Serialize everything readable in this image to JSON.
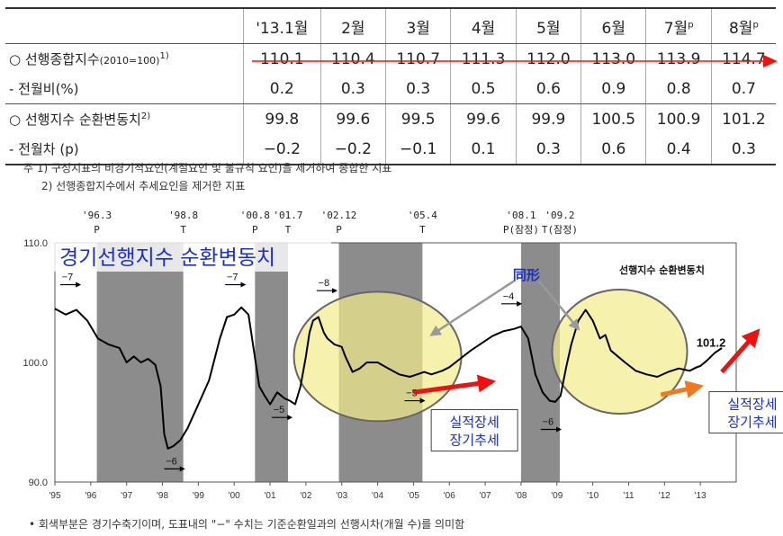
{
  "table": {
    "columns": [
      "'13.1월",
      "2월",
      "3월",
      "4월",
      "5월",
      "6월",
      "7월",
      "8월"
    ],
    "column_superscripts": [
      "",
      "",
      "",
      "",
      "",
      "",
      "p",
      "p"
    ],
    "rows": [
      {
        "label": "○  선행종합지수",
        "label_small": "(2010=100)",
        "label_sup": "1)",
        "values": [
          "110.1",
          "110.4",
          "110.7",
          "111.3",
          "112.0",
          "113.0",
          "113.9",
          "114.7"
        ]
      },
      {
        "label": "  - 전월비(%)",
        "label_small": "",
        "label_sup": "",
        "values": [
          "0.2",
          "0.3",
          "0.3",
          "0.5",
          "0.6",
          "0.9",
          "0.8",
          "0.7"
        ]
      },
      {
        "label": "○  선행지수 순환변동치",
        "label_small": "",
        "label_sup": "2)",
        "values": [
          "99.8",
          "99.6",
          "99.5",
          "99.6",
          "99.9",
          "100.5",
          "100.9",
          "101.2"
        ]
      },
      {
        "label": "  - 전월차 (p)",
        "label_small": "",
        "label_sup": "",
        "values": [
          "−0.2",
          "−0.2",
          "−0.1",
          "0.1",
          "0.3",
          "0.6",
          "0.4",
          "0.3"
        ]
      }
    ]
  },
  "notes": {
    "note1": "주 1) 구성지표의 비경기적요인(계절요인 및 불규칙 요인)을 제거하여 종합한 지표",
    "note2": "2) 선행종합지수에서 추세요인을 제거한 지표"
  },
  "bottom_note": "• 회색부분은 경기수축기이며, 도표내의 \"−\" 수치는 기준순환일과의 선행시차(개월 수)를 의미함",
  "colors": {
    "recession": "#8c8c8c",
    "line": "#000000",
    "ellipse_fill": "#f2ec8c",
    "ellipse_stroke": "#666666",
    "annotation_blue": "#1a30c8",
    "red_arrow": "#ee1111",
    "orange_arrow": "#f07820"
  },
  "chart_data": {
    "type": "line",
    "title_overlay": "경기선행지수 순환변동치",
    "legend": "선행지수 순환변동치",
    "ylim": [
      90.0,
      110.0
    ],
    "yticks": [
      "90.0",
      "100.0",
      "110.0"
    ],
    "xticks": [
      "'95",
      "'96",
      "'97",
      "'98",
      "'99",
      "'00",
      "'01",
      "'02",
      "'03",
      "'04",
      "'05",
      "'06",
      "'07",
      "'08",
      "'09",
      "'10",
      "'11",
      "'12",
      "'13"
    ],
    "x_range": [
      1995.0,
      2014.0
    ],
    "turning_points": [
      {
        "label": "'96.3",
        "type": "P",
        "x": 1996.17
      },
      {
        "label": "'98.8",
        "type": "T",
        "x": 1998.58
      },
      {
        "label": "'00.8",
        "type": "P",
        "x": 2000.58
      },
      {
        "label": "'01.7",
        "type": "T",
        "x": 2001.5
      },
      {
        "label": "'02.12",
        "type": "P",
        "x": 2002.92
      },
      {
        "label": "'05.4",
        "type": "T",
        "x": 2005.25
      },
      {
        "label": "'08.1",
        "type": "P(잠정)",
        "x": 2008.0
      },
      {
        "label": "'09.2",
        "type": "T(잠정)",
        "x": 2009.08
      }
    ],
    "recessions": [
      [
        1996.17,
        1998.58
      ],
      [
        2000.58,
        2001.5
      ],
      [
        2002.92,
        2005.25
      ],
      [
        2008.0,
        2009.08
      ]
    ],
    "lead_labels": [
      {
        "text": "−7",
        "x": 1995.35,
        "y": 106.5
      },
      {
        "text": "−6",
        "x": 1998.25,
        "y": 91.1
      },
      {
        "text": "−7",
        "x": 1999.95,
        "y": 106.5
      },
      {
        "text": "−5",
        "x": 2001.25,
        "y": 95.4
      },
      {
        "text": "−8",
        "x": 2002.5,
        "y": 106.0
      },
      {
        "text": "−5",
        "x": 2004.95,
        "y": 96.8
      },
      {
        "text": "−4",
        "x": 2007.65,
        "y": 104.9
      },
      {
        "text": "−6",
        "x": 2008.75,
        "y": 94.4
      }
    ],
    "series": [
      {
        "name": "선행지수 순환변동치",
        "x": [
          1995.0,
          1995.3,
          1995.6,
          1995.9,
          1996.2,
          1996.5,
          1996.8,
          1997.0,
          1997.2,
          1997.4,
          1997.6,
          1997.8,
          1997.95,
          1998.05,
          1998.15,
          1998.3,
          1998.5,
          1998.7,
          1999.0,
          1999.3,
          1999.6,
          1999.8,
          2000.0,
          2000.2,
          2000.4,
          2000.55,
          2000.7,
          2000.85,
          2001.0,
          2001.2,
          2001.4,
          2001.55,
          2001.7,
          2001.85,
          2002.0,
          2002.1,
          2002.2,
          2002.35,
          2002.5,
          2002.6,
          2002.8,
          2003.0,
          2003.1,
          2003.3,
          2003.5,
          2003.7,
          2004.0,
          2004.3,
          2004.6,
          2004.9,
          2005.1,
          2005.3,
          2005.5,
          2005.8,
          2006.0,
          2006.3,
          2006.6,
          2006.9,
          2007.2,
          2007.5,
          2007.8,
          2008.0,
          2008.2,
          2008.4,
          2008.6,
          2008.8,
          2008.95,
          2009.1,
          2009.25,
          2009.4,
          2009.6,
          2009.8,
          2010.0,
          2010.2,
          2010.35,
          2010.5,
          2010.7,
          2010.9,
          2011.2,
          2011.5,
          2011.8,
          2012.1,
          2012.4,
          2012.7,
          2012.9,
          2013.0,
          2013.2,
          2013.4,
          2013.6
        ],
        "y": [
          104.5,
          104.0,
          104.4,
          103.5,
          102.0,
          101.5,
          101.2,
          100.0,
          100.5,
          100.0,
          100.3,
          99.8,
          98.0,
          94.0,
          92.8,
          93.0,
          93.5,
          94.5,
          96.5,
          98.5,
          102.0,
          103.8,
          104.0,
          104.6,
          104.0,
          101.0,
          98.0,
          97.2,
          96.5,
          97.5,
          97.0,
          96.8,
          96.5,
          98.0,
          100.5,
          102.5,
          103.5,
          103.8,
          102.5,
          102.0,
          101.5,
          101.3,
          100.5,
          99.2,
          99.5,
          100.0,
          100.0,
          99.5,
          99.0,
          98.8,
          99.0,
          99.2,
          99.0,
          99.3,
          99.6,
          100.3,
          101.0,
          101.6,
          102.2,
          102.6,
          102.8,
          103.0,
          102.0,
          99.0,
          97.5,
          96.8,
          96.7,
          97.2,
          99.5,
          101.5,
          103.5,
          104.4,
          103.5,
          102.0,
          102.3,
          101.0,
          100.5,
          100.0,
          99.3,
          99.0,
          98.8,
          99.2,
          99.5,
          99.3,
          99.6,
          99.7,
          100.2,
          100.8,
          101.2
        ]
      }
    ],
    "annotations": [
      {
        "text": "同形",
        "x": 2008.15,
        "y": 107.3
      },
      {
        "text": "101.2",
        "x": 2013.3,
        "y": 101.7
      },
      {
        "text": "실적장세 장기추세",
        "x": 2006.7,
        "y": 94.4
      },
      {
        "text": "실적장세 장기추세",
        "x": 2014.45,
        "y": 95.9
      }
    ]
  }
}
